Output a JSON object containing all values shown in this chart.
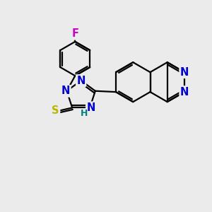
{
  "bg_color": "#ebebeb",
  "bond_color": "#000000",
  "N_color": "#0000cc",
  "S_color": "#b8b800",
  "F_color": "#cc00cc",
  "H_color": "#008080",
  "line_width": 1.6,
  "font_size": 10.5,
  "small_font_size": 9,
  "xlim": [
    0,
    10
  ],
  "ylim": [
    0,
    10
  ]
}
